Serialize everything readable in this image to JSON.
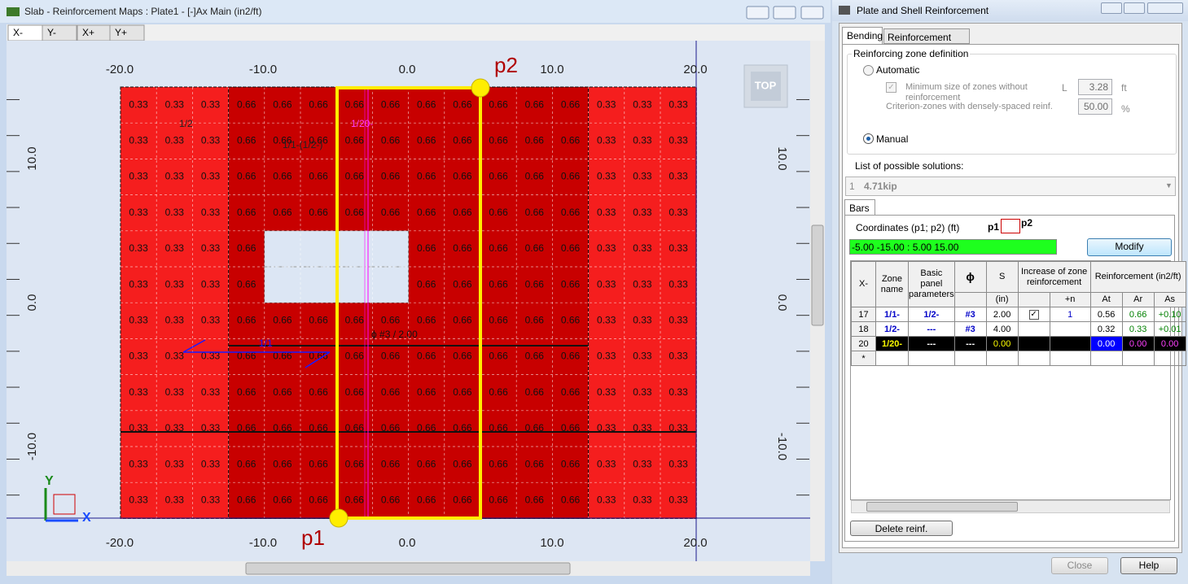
{
  "main_window": {
    "title": "Slab - Reinforcement Maps : Plate1 - [-]Ax Main (in2/ft)",
    "tabs": [
      "X-",
      "Y-",
      "X+",
      "Y+"
    ]
  },
  "map": {
    "x_labels": [
      "-20.0",
      "-10.0",
      "0.0",
      "10.0",
      "20.0"
    ],
    "y_labels": [
      "10.0",
      "0.0",
      "-10.0"
    ],
    "cells": [
      [
        0.33,
        0.33,
        0.33,
        0.66,
        0.66,
        0.66,
        0.66,
        0.66,
        0.66,
        0.66,
        0.66,
        0.66,
        0.66,
        0.33,
        0.33,
        0.33
      ],
      [
        0.33,
        0.33,
        0.33,
        0.66,
        0.66,
        0.66,
        0.66,
        0.66,
        0.66,
        0.66,
        0.66,
        0.66,
        0.66,
        0.33,
        0.33,
        0.33
      ],
      [
        0.33,
        0.33,
        0.33,
        0.66,
        0.66,
        0.66,
        0.66,
        0.66,
        0.66,
        0.66,
        0.66,
        0.66,
        0.66,
        0.33,
        0.33,
        0.33
      ],
      [
        0.33,
        0.33,
        0.33,
        0.66,
        0.66,
        0.66,
        0.66,
        0.66,
        0.66,
        0.66,
        0.66,
        0.66,
        0.66,
        0.33,
        0.33,
        0.33
      ],
      [
        0.33,
        0.33,
        0.33,
        0.66,
        null,
        null,
        null,
        null,
        0.66,
        0.66,
        0.66,
        0.66,
        0.66,
        0.33,
        0.33,
        0.33
      ],
      [
        0.33,
        0.33,
        0.33,
        0.66,
        null,
        null,
        null,
        null,
        0.66,
        0.66,
        0.66,
        0.66,
        0.66,
        0.33,
        0.33,
        0.33
      ],
      [
        0.33,
        0.33,
        0.33,
        0.66,
        0.66,
        0.66,
        0.66,
        0.66,
        0.66,
        0.66,
        0.66,
        0.66,
        0.66,
        0.33,
        0.33,
        0.33
      ],
      [
        0.33,
        0.33,
        0.33,
        0.66,
        0.66,
        0.66,
        0.66,
        0.66,
        0.66,
        0.66,
        0.66,
        0.66,
        0.66,
        0.33,
        0.33,
        0.33
      ],
      [
        0.33,
        0.33,
        0.33,
        0.66,
        0.66,
        0.66,
        0.66,
        0.66,
        0.66,
        0.66,
        0.66,
        0.66,
        0.66,
        0.33,
        0.33,
        0.33
      ],
      [
        0.33,
        0.33,
        0.33,
        0.66,
        0.66,
        0.66,
        0.66,
        0.66,
        0.66,
        0.66,
        0.66,
        0.66,
        0.66,
        0.33,
        0.33,
        0.33
      ],
      [
        0.33,
        0.33,
        0.33,
        0.66,
        0.66,
        0.66,
        0.66,
        0.66,
        0.66,
        0.66,
        0.66,
        0.66,
        0.66,
        0.33,
        0.33,
        0.33
      ],
      [
        0.33,
        0.33,
        0.33,
        0.66,
        0.66,
        0.66,
        0.66,
        0.66,
        0.66,
        0.66,
        0.66,
        0.66,
        0.66,
        0.33,
        0.33,
        0.33
      ]
    ],
    "annotations": {
      "zone_outer": "1/2",
      "zone_inner": "1/1-(1/2-)",
      "zone_strip": "1/20-",
      "bar_label": "ϕ #3 / 2.00",
      "bar_zone": "1/1"
    },
    "points": {
      "p1": "p1",
      "p2": "p2"
    },
    "view_cube": "TOP",
    "axes": {
      "x": "X",
      "y": "Y"
    }
  },
  "dialog": {
    "title": "Plate and Shell Reinforcement",
    "tabs": [
      "Bending",
      "Reinforcement maps"
    ],
    "zone_group": "Reinforcing zone definition",
    "automatic": "Automatic",
    "min_size": "Minimum size of zones without reinforcement",
    "l_label": "L",
    "l_value": "3.28",
    "l_unit": "ft",
    "criterion": "Criterion-zones with densely-spaced reinf.",
    "criterion_value": "50.00",
    "criterion_unit": "%",
    "manual": "Manual",
    "solutions_label": "List of possible solutions:",
    "solution": {
      "index": "1",
      "text": "4.71kip"
    },
    "bars_tab": "Bars",
    "coords_label": "Coordinates (p1; p2) (ft)",
    "coords_icon": [
      "p1",
      "p2"
    ],
    "coords_value": "-5.00  -15.00  :  5.00  15.00",
    "modify": "Modify",
    "table": {
      "headers": {
        "no": "X-",
        "zone": "Zone name",
        "basic": "Basic panel parameters",
        "phi": "ϕ",
        "s": "S",
        "s_unit": "(in)",
        "increase": "Increase of zone reinforcement",
        "n": "+n",
        "reinf": "Reinforcement (in2/ft)",
        "at": "At",
        "ar": "Ar",
        "as": "As"
      },
      "rows": [
        {
          "no": "17",
          "zone": "1/1-",
          "basic": "1/2-",
          "phi": "#3",
          "s": "2.00",
          "increase": true,
          "n": "1",
          "at": "0.56",
          "ar": "0.66",
          "as": "+0.10"
        },
        {
          "no": "18",
          "zone": "1/2-",
          "basic": "---",
          "phi": "#3",
          "s": "4.00",
          "increase": false,
          "at": "0.32",
          "ar": "0.33",
          "as": "+0.01"
        },
        {
          "no": "20",
          "zone": "1/20-",
          "basic": "---",
          "phi": "---",
          "s": "0.00",
          "increase": false,
          "at": "0.00",
          "ar": "0.00",
          "as": "0.00"
        }
      ],
      "new_row": "*"
    },
    "delete": "Delete reinf.",
    "close": "Close",
    "help": "Help"
  }
}
